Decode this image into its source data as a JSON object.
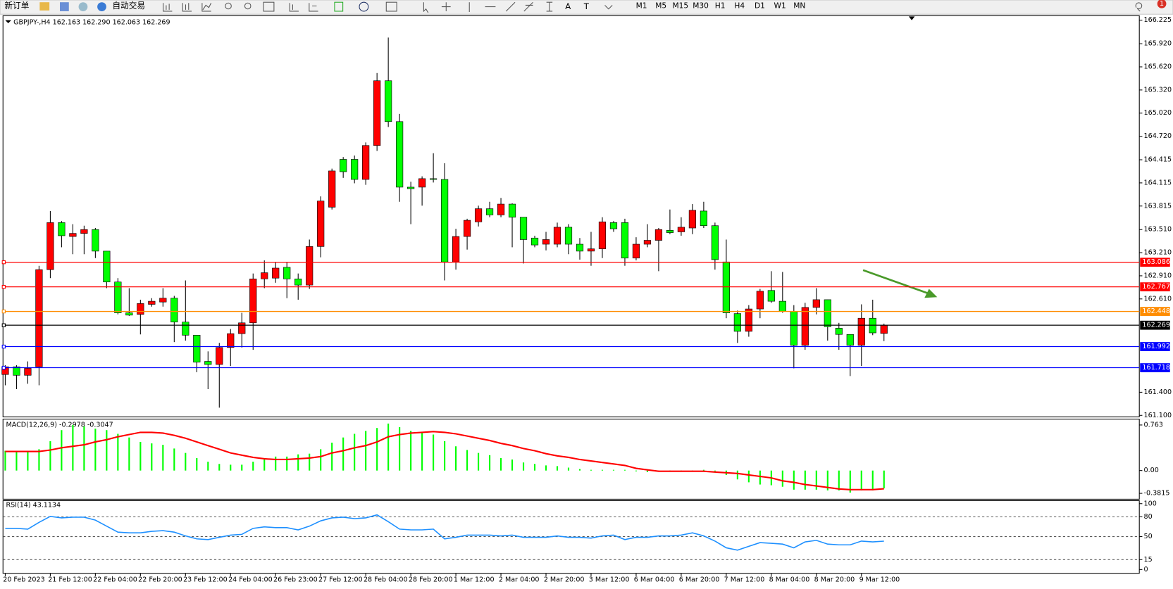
{
  "toolbar": {
    "buttons": [
      "新订单",
      "自动交易"
    ],
    "timeframes": [
      "M1",
      "M5",
      "M15",
      "M30",
      "H1",
      "H4",
      "D1",
      "W1",
      "MN"
    ],
    "badge": "1"
  },
  "chart_data": [
    {
      "type": "candlestick",
      "title": "GBPJPY-,H4  162.163 162.290 162.063 162.269",
      "categories": [
        "20 Feb 2023",
        null,
        null,
        null,
        "21 Feb 12:00",
        null,
        null,
        null,
        "22 Feb 04:00",
        null,
        null,
        null,
        "22 Feb 20:00",
        null,
        null,
        null,
        "23 Feb 12:00",
        null,
        null,
        null,
        "24 Feb 04:00",
        null,
        null,
        null,
        "26 Feb 23:00",
        null,
        null,
        null,
        "27 Feb 12:00",
        null,
        null,
        null,
        "28 Feb 04:00",
        null,
        null,
        null,
        "28 Feb 20:00",
        null,
        null,
        null,
        "1 Mar 12:00",
        null,
        null,
        null,
        "2 Mar 04:00",
        null,
        null,
        null,
        "2 Mar 20:00",
        null,
        null,
        null,
        "3 Mar 12:00",
        null,
        null,
        null,
        "6 Mar 04:00",
        null,
        null,
        null,
        "6 Mar 20:00",
        null,
        null,
        null,
        "7 Mar 12:00",
        null,
        null,
        null,
        "8 Mar 04:00",
        null,
        null,
        null,
        "8 Mar 20:00",
        null,
        null,
        null,
        "9 Mar 12:00",
        null,
        null
      ],
      "open": [
        161.63,
        161.73,
        161.62,
        161.73,
        162.99,
        163.6,
        163.42,
        163.46,
        163.51,
        163.23,
        162.83,
        162.43,
        162.41,
        162.54,
        162.57,
        162.62,
        162.31,
        162.14,
        161.8,
        161.76,
        161.98,
        162.16,
        162.3,
        162.87,
        162.88,
        163.02,
        162.87,
        162.79,
        163.29,
        163.8,
        164.42,
        164.42,
        164.16,
        164.6,
        165.44,
        164.91,
        164.06,
        164.06,
        164.17,
        164.16,
        163.09,
        163.42,
        163.61,
        163.78,
        163.7,
        163.84,
        163.67,
        163.4,
        163.32,
        163.32,
        163.54,
        163.32,
        163.23,
        163.26,
        163.6,
        163.6,
        163.14,
        163.32,
        163.37,
        163.5,
        163.48,
        163.53,
        163.75,
        163.56,
        163.09,
        162.42,
        162.19,
        162.48,
        162.72,
        162.58,
        162.45,
        162.01,
        162.5,
        162.6,
        162.23,
        162.15,
        162.01,
        162.36,
        162.163
      ],
      "high": [
        161.75,
        161.75,
        161.8,
        163.04,
        163.75,
        163.62,
        163.58,
        163.56,
        163.53,
        163.23,
        162.88,
        162.75,
        162.6,
        162.62,
        162.75,
        162.65,
        162.85,
        162.14,
        161.93,
        162.04,
        162.22,
        162.43,
        162.94,
        163.11,
        163.09,
        163.09,
        162.94,
        163.38,
        163.94,
        164.3,
        164.45,
        164.47,
        164.64,
        165.54,
        166.0,
        165.01,
        164.13,
        164.2,
        164.5,
        164.37,
        163.52,
        163.65,
        163.82,
        163.87,
        163.92,
        163.85,
        163.67,
        163.43,
        163.48,
        163.6,
        163.58,
        163.4,
        163.48,
        163.67,
        163.62,
        163.65,
        163.41,
        163.58,
        163.53,
        163.77,
        163.67,
        163.84,
        163.87,
        163.6,
        163.38,
        162.46,
        162.53,
        162.74,
        162.97,
        162.96,
        162.53,
        162.56,
        162.75,
        162.6,
        162.3,
        162.15,
        162.54,
        162.6,
        162.29
      ],
      "low": [
        161.49,
        161.44,
        161.51,
        161.49,
        162.88,
        163.28,
        163.19,
        163.19,
        163.14,
        162.75,
        162.41,
        162.39,
        162.15,
        162.51,
        162.51,
        162.05,
        162.07,
        161.66,
        161.44,
        161.2,
        161.74,
        161.98,
        161.95,
        162.75,
        162.82,
        162.62,
        162.6,
        162.74,
        163.15,
        163.77,
        164.18,
        164.11,
        164.09,
        164.53,
        164.84,
        163.87,
        163.58,
        163.82,
        164.12,
        162.85,
        162.99,
        163.25,
        163.55,
        163.67,
        163.67,
        163.28,
        163.07,
        163.28,
        163.24,
        163.28,
        163.19,
        163.12,
        163.04,
        163.14,
        163.48,
        163.04,
        163.11,
        163.28,
        162.97,
        163.45,
        163.43,
        163.45,
        163.53,
        162.99,
        162.36,
        162.04,
        162.12,
        162.36,
        162.56,
        162.43,
        161.71,
        161.95,
        162.41,
        162.07,
        161.95,
        161.61,
        161.74,
        162.14,
        162.063
      ],
      "close": [
        161.73,
        161.62,
        161.71,
        162.99,
        163.6,
        163.43,
        163.46,
        163.51,
        163.23,
        162.83,
        162.43,
        162.4,
        162.55,
        162.58,
        162.62,
        162.31,
        162.14,
        161.79,
        161.76,
        161.98,
        162.16,
        162.3,
        162.87,
        162.95,
        163.01,
        162.87,
        162.79,
        163.29,
        163.88,
        164.27,
        164.26,
        164.16,
        164.6,
        165.44,
        164.91,
        164.06,
        164.04,
        164.17,
        164.16,
        163.09,
        163.42,
        163.63,
        163.78,
        163.7,
        163.84,
        163.67,
        163.38,
        163.31,
        163.38,
        163.54,
        163.32,
        163.23,
        163.26,
        163.61,
        163.52,
        163.14,
        163.32,
        163.37,
        163.51,
        163.47,
        163.54,
        163.76,
        163.56,
        163.12,
        162.43,
        162.19,
        162.48,
        162.71,
        162.58,
        162.45,
        162.01,
        162.5,
        162.6,
        162.25,
        162.15,
        162.01,
        162.36,
        162.17,
        162.269
      ],
      "up_color": "#ff0000",
      "down_color": "#00ff00",
      "ylim": [
        161.1,
        166.225
      ],
      "yticks": [
        166.225,
        {
          "value": 165.92,
          "label": "165.920"
        },
        {
          "value": 165.62,
          "label": "165.620"
        },
        {
          "value": 165.32,
          "label": "165.320"
        },
        {
          "value": 165.02,
          "label": "165.020"
        },
        {
          "value": 164.72,
          "label": "164.720"
        },
        164.415,
        164.115,
        163.815,
        {
          "value": 163.51,
          "label": "163.510"
        },
        {
          "value": 163.21,
          "label": "163.210"
        },
        {
          "value": 162.91,
          "label": "162.910"
        },
        {
          "value": 162.61,
          "label": "162.610"
        },
        {
          "value": 161.4,
          "label": "161.400"
        },
        {
          "value": 161.1,
          "label": "161.100"
        }
      ],
      "levels": [
        {
          "value": 163.086,
          "color": "#ff0000"
        },
        {
          "value": 162.767,
          "color": "#ff0000"
        },
        {
          "value": 162.448,
          "color": "#ff8c00"
        },
        {
          "value": 162.269,
          "color": "#000000"
        },
        {
          "value": 161.992,
          "color": "#0000ff"
        },
        {
          "value": 161.718,
          "color": "#0000ff"
        }
      ]
    },
    {
      "type": "combo",
      "title": "MACD(12,26,9) -0.2978 -0.3047",
      "ylim": [
        -0.467,
        0.849
      ],
      "yticks": [
        0.763,
        {
          "value": 0,
          "label": "0.00"
        },
        -0.3815
      ],
      "series": [
        {
          "type": "bar",
          "color": "#00ff00",
          "values": [
            0.332,
            0.32,
            0.332,
            0.357,
            0.492,
            0.677,
            0.763,
            0.738,
            0.701,
            0.677,
            0.615,
            0.554,
            0.48,
            0.455,
            0.431,
            0.369,
            0.295,
            0.209,
            0.148,
            0.111,
            0.098,
            0.098,
            0.148,
            0.185,
            0.234,
            0.234,
            0.271,
            0.283,
            0.357,
            0.467,
            0.554,
            0.615,
            0.664,
            0.713,
            0.787,
            0.726,
            0.664,
            0.627,
            0.603,
            0.492,
            0.406,
            0.344,
            0.295,
            0.258,
            0.209,
            0.185,
            0.135,
            0.111,
            0.086,
            0.074,
            0.049,
            0.025,
            0.012,
            0.012,
            0.012,
            0.012,
            -0.012,
            -0.025,
            -0.012,
            0,
            0,
            0,
            0.012,
            -0.012,
            -0.074,
            -0.148,
            -0.197,
            -0.234,
            -0.246,
            -0.271,
            -0.32,
            -0.32,
            -0.32,
            -0.332,
            -0.332,
            -0.369,
            -0.332,
            -0.332,
            -0.2978
          ]
        },
        {
          "type": "line",
          "color": "#ff0000",
          "values": [
            0.32,
            0.32,
            0.32,
            0.32,
            0.344,
            0.381,
            0.406,
            0.431,
            0.48,
            0.517,
            0.566,
            0.603,
            0.64,
            0.64,
            0.627,
            0.59,
            0.541,
            0.48,
            0.418,
            0.357,
            0.295,
            0.258,
            0.221,
            0.197,
            0.185,
            0.185,
            0.197,
            0.209,
            0.234,
            0.295,
            0.332,
            0.381,
            0.418,
            0.48,
            0.566,
            0.603,
            0.627,
            0.64,
            0.652,
            0.64,
            0.615,
            0.578,
            0.541,
            0.504,
            0.455,
            0.418,
            0.369,
            0.332,
            0.283,
            0.246,
            0.221,
            0.185,
            0.16,
            0.135,
            0.111,
            0.086,
            0.037,
            0.012,
            -0.012,
            -0.012,
            -0.012,
            -0.012,
            -0.012,
            -0.025,
            -0.037,
            -0.049,
            -0.074,
            -0.098,
            -0.123,
            -0.172,
            -0.197,
            -0.234,
            -0.258,
            -0.283,
            -0.308,
            -0.32,
            -0.32,
            -0.32,
            -0.3047
          ]
        }
      ]
    },
    {
      "type": "line",
      "title": "RSI(14) 43.1134",
      "color": "#1e90ff",
      "ylim": [
        0,
        100
      ],
      "yticks": [
        100,
        80,
        50,
        15,
        0
      ],
      "levels": [
        80,
        50,
        15
      ],
      "values": [
        62.5,
        62.5,
        61.4,
        71.6,
        80.7,
        78.4,
        79.5,
        79.5,
        75.0,
        65.9,
        56.8,
        55.7,
        55.7,
        58.0,
        59.1,
        56.8,
        51.1,
        46.6,
        45.5,
        48.9,
        52.3,
        53.4,
        62.5,
        64.8,
        63.6,
        63.6,
        60.2,
        65.9,
        73.9,
        78.4,
        79.5,
        77.3,
        78.4,
        83.0,
        72.7,
        61.4,
        60.2,
        60.2,
        61.4,
        46.6,
        48.9,
        52.3,
        52.3,
        52.3,
        51.1,
        52.3,
        48.9,
        48.9,
        48.9,
        51.1,
        48.9,
        48.9,
        47.7,
        51.1,
        52.3,
        45.5,
        48.9,
        48.9,
        51.1,
        51.1,
        52.3,
        55.7,
        51.1,
        43.2,
        33.0,
        29.5,
        35.2,
        40.9,
        39.8,
        38.6,
        33.0,
        42.0,
        44.3,
        38.6,
        37.5,
        37.5,
        43.2,
        42.0,
        43.1134
      ]
    }
  ]
}
